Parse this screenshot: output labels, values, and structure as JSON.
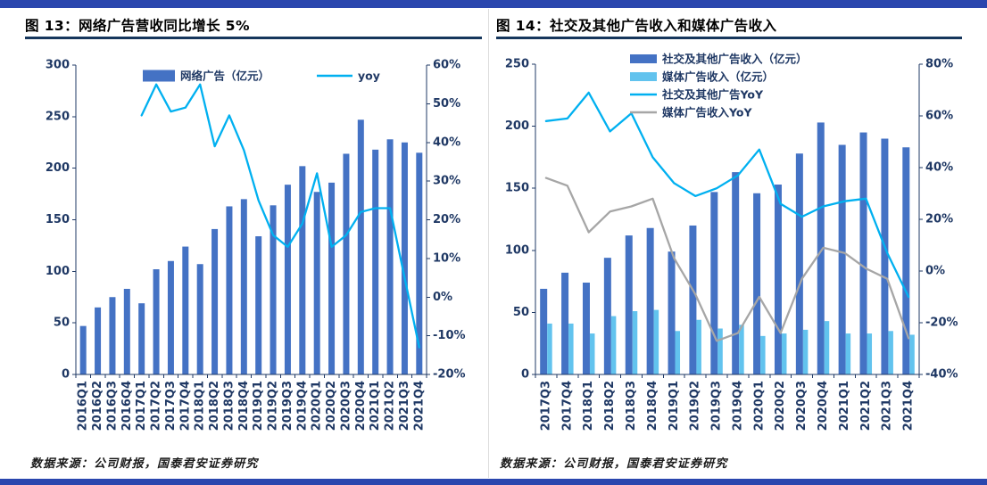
{
  "page": {
    "background": "#ffffff",
    "accent_color": "#2a46ae",
    "rule_color": "#16365c",
    "axis_color": "#1f3864",
    "tick_label_color": "#1f3864"
  },
  "figures": [
    {
      "title": "图 13：网络广告营收同比增长 5%",
      "source": "数据来源：公司财报，国泰君安证券研究"
    },
    {
      "title": "图 14：社交及其他广告收入和媒体广告收入",
      "source": "数据来源：公司财报，国泰君安证券研究"
    }
  ],
  "chart_data": [
    {
      "type": "bar",
      "subtype": "bar-line-combo",
      "title": "图 13：网络广告营收同比增长 5%",
      "grid": false,
      "legend_position": "top-horizontal",
      "categories": [
        "2016Q1",
        "2016Q2",
        "2016Q3",
        "2016Q4",
        "2017Q1",
        "2017Q2",
        "2017Q3",
        "2017Q4",
        "2018Q1",
        "2018Q2",
        "2018Q3",
        "2018Q4",
        "2019Q1",
        "2019Q2",
        "2019Q3",
        "2019Q4",
        "2020Q1",
        "2020Q2",
        "2020Q3",
        "2020Q4",
        "2021Q1",
        "2021Q2",
        "2021Q3",
        "2021Q4"
      ],
      "left_axis": {
        "min": 0,
        "max": 300,
        "step": 50,
        "unit": "",
        "labels": [
          "0",
          "50",
          "100",
          "150",
          "200",
          "250",
          "300"
        ]
      },
      "right_axis": {
        "min": -20,
        "max": 60,
        "step": 10,
        "unit": "%",
        "labels": [
          "-20%",
          "-10%",
          "0%",
          "10%",
          "20%",
          "30%",
          "40%",
          "50%",
          "60%"
        ]
      },
      "series": [
        {
          "name": "网络广告（亿元）",
          "type": "bar",
          "axis": "left",
          "color": "#4472c4",
          "values": [
            47,
            65,
            75,
            83,
            69,
            102,
            110,
            124,
            107,
            141,
            163,
            170,
            134,
            164,
            184,
            202,
            177,
            186,
            214,
            247,
            218,
            228,
            225,
            215
          ]
        },
        {
          "name": "yoy",
          "type": "line",
          "axis": "right",
          "color": "#00b0f0",
          "values": [
            null,
            null,
            null,
            null,
            47,
            55,
            48,
            49,
            55,
            39,
            47,
            38,
            25,
            16,
            13,
            19,
            32,
            13,
            16,
            22,
            23,
            23,
            5,
            -13
          ]
        }
      ]
    },
    {
      "type": "bar",
      "subtype": "bar-line-combo",
      "title": "图 14：社交及其他广告收入和媒体广告收入",
      "grid": false,
      "legend_position": "top-vertical",
      "categories": [
        "2017Q3",
        "2017Q4",
        "2018Q1",
        "2018Q2",
        "2018Q3",
        "2018Q4",
        "2019Q1",
        "2019Q2",
        "2019Q3",
        "2019Q4",
        "2020Q1",
        "2020Q2",
        "2020Q3",
        "2020Q4",
        "2021Q1",
        "2021Q2",
        "2021Q3",
        "2021Q4"
      ],
      "left_axis": {
        "min": 0,
        "max": 250,
        "step": 50,
        "unit": "",
        "labels": [
          "0",
          "50",
          "100",
          "150",
          "200",
          "250"
        ]
      },
      "right_axis": {
        "min": -40,
        "max": 80,
        "step": 20,
        "unit": "%",
        "labels": [
          "-40%",
          "-20%",
          "0%",
          "20%",
          "40%",
          "60%",
          "80%"
        ]
      },
      "series": [
        {
          "name": "社交及其他广告收入（亿元）",
          "type": "bar",
          "axis": "left",
          "color": "#4472c4",
          "values": [
            69,
            82,
            74,
            94,
            112,
            118,
            99,
            120,
            147,
            163,
            146,
            153,
            178,
            203,
            185,
            195,
            190,
            183
          ]
        },
        {
          "name": "媒体广告收入（亿元）",
          "type": "bar",
          "axis": "left",
          "color": "#62c3ee",
          "values": [
            41,
            41,
            33,
            47,
            51,
            52,
            35,
            44,
            37,
            40,
            31,
            33,
            36,
            43,
            33,
            33,
            35,
            32
          ]
        },
        {
          "name": "社交及其他广告YoY",
          "type": "line",
          "axis": "right",
          "color": "#00b0f0",
          "values": [
            58,
            59,
            69,
            54,
            61,
            44,
            34,
            29,
            32,
            37,
            47,
            26,
            21,
            25,
            27,
            28,
            7,
            -10
          ]
        },
        {
          "name": "媒体广告收入YoY",
          "type": "line",
          "axis": "right",
          "color": "#a6a6a6",
          "values": [
            36,
            33,
            15,
            23,
            25,
            28,
            5,
            -9,
            -27,
            -24,
            -10,
            -24,
            -3,
            9,
            7,
            1,
            -3,
            -26
          ]
        }
      ]
    }
  ]
}
